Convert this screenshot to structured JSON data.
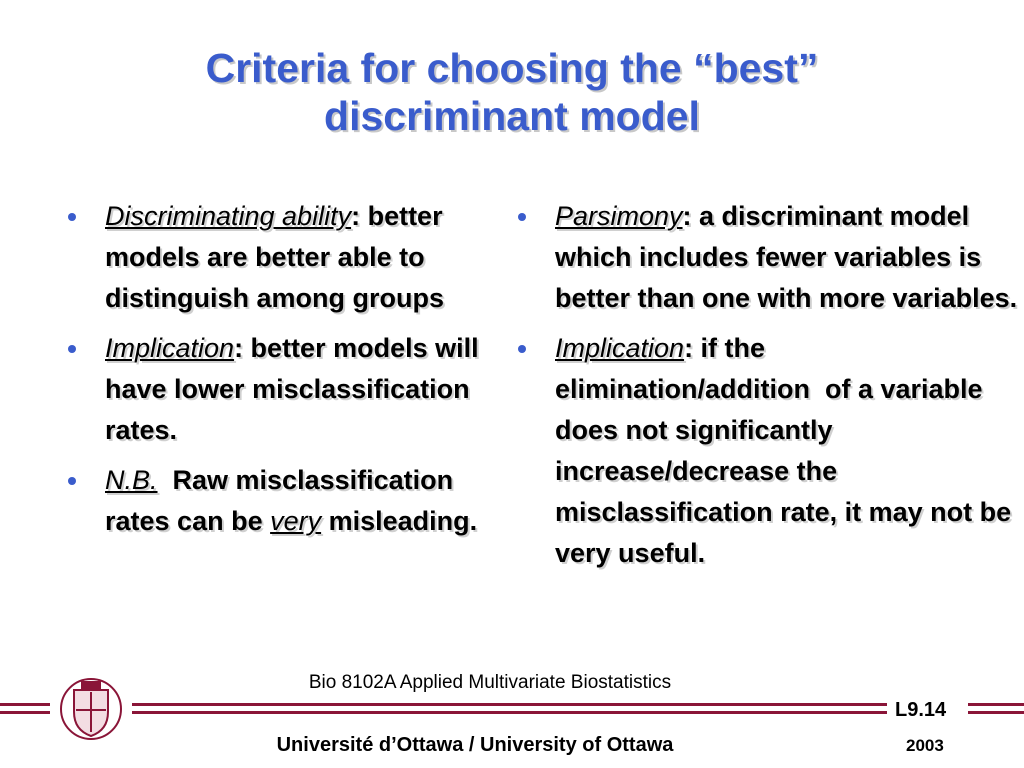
{
  "title": "Criteria for choosing the “best” discriminant model",
  "columns": [
    [
      {
        "segments": [
          {
            "text": "Discriminating ability",
            "emph": true
          },
          {
            "text": ": better models are better able to distinguish among groups",
            "emph": false
          }
        ]
      },
      {
        "segments": [
          {
            "text": "Implication",
            "emph": true
          },
          {
            "text": ": better models will have lower misclassification rates.",
            "emph": false
          }
        ]
      },
      {
        "segments": [
          {
            "text": "N.B.",
            "emph": true
          },
          {
            "text": "  Raw misclassification rates can be ",
            "emph": false
          },
          {
            "text": "very",
            "emph": true
          },
          {
            "text": " misleading.",
            "emph": false
          }
        ]
      }
    ],
    [
      {
        "segments": [
          {
            "text": "Parsimony",
            "emph": true
          },
          {
            "text": ": a discriminant model which includes fewer variables is better than one with more variables.",
            "emph": false
          }
        ]
      },
      {
        "segments": [
          {
            "text": "Implication",
            "emph": true
          },
          {
            "text": ": if the elimination/addition  of a variable does not significantly increase/decrease the misclassification rate, it may not be very useful.",
            "emph": false
          }
        ]
      }
    ]
  ],
  "footer": {
    "course": "Bio 8102A Applied Multivariate Biostatistics",
    "slide": "L9.14",
    "year": "2003",
    "university": "Université d’Ottawa / University of Ottawa"
  }
}
